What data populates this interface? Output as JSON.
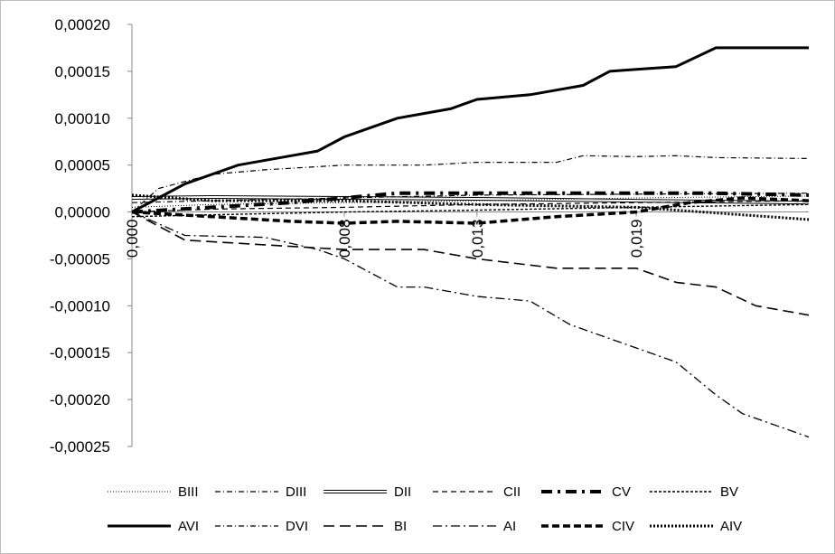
{
  "chart_data": {
    "type": "line",
    "title": "",
    "xlabel": "",
    "ylabel": "",
    "x_tick_labels": [
      "0,000",
      "0,008",
      "0,013",
      "0,019"
    ],
    "x_tick_values": [
      0.0,
      0.008,
      0.013,
      0.019
    ],
    "xlim": [
      0.0,
      0.0255
    ],
    "y_tick_labels": [
      "0,00020",
      "0,00015",
      "0,00010",
      "0,00005",
      "0,00000",
      "-0,00005",
      "-0,00010",
      "-0,00015",
      "-0,00020",
      "-0,00025"
    ],
    "y_tick_values": [
      0.0002,
      0.00015,
      0.0001,
      5e-05,
      0.0,
      -5e-05,
      -0.0001,
      -0.00015,
      -0.0002,
      -0.00025
    ],
    "ylim": [
      -0.00025,
      0.0002
    ],
    "grid": "none",
    "legend_position": "bottom",
    "series": [
      {
        "name": "BIII",
        "style": "dotted-thin",
        "x": [
          0,
          0.003,
          0.008,
          0.013,
          0.019,
          0.0255
        ],
        "y": [
          5e-06,
          8e-06,
          1e-05,
          1.2e-05,
          1.5e-05,
          1.7e-05
        ]
      },
      {
        "name": "DIII",
        "style": "dashdot-thin",
        "x": [
          0,
          0.003,
          0.008,
          0.013,
          0.019,
          0.0255
        ],
        "y": [
          1e-05,
          1.2e-05,
          1.5e-05,
          1.8e-05,
          1.9e-05,
          2e-05
        ]
      },
      {
        "name": "DII",
        "style": "double",
        "x": [
          0,
          0.003,
          0.008,
          0.013,
          0.019,
          0.0255
        ],
        "y": [
          1.5e-05,
          1.6e-05,
          1.5e-05,
          1.4e-05,
          1.2e-05,
          1e-05
        ]
      },
      {
        "name": "CII",
        "style": "dashed-thin",
        "x": [
          0,
          0.003,
          0.008,
          0.013,
          0.019,
          0.0255
        ],
        "y": [
          0.0,
          3e-06,
          5e-06,
          8e-06,
          1e-05,
          1.2e-05
        ]
      },
      {
        "name": "CV",
        "style": "dashdot-thick",
        "x": [
          0,
          0.003,
          0.006,
          0.008,
          0.01,
          0.013,
          0.016,
          0.019,
          0.022,
          0.0255
        ],
        "y": [
          0.0,
          5e-06,
          1e-05,
          1.5e-05,
          2e-05,
          2e-05,
          2e-05,
          2e-05,
          2e-05,
          1.8e-05
        ]
      },
      {
        "name": "BV",
        "style": "dashed-fine",
        "x": [
          0,
          0.003,
          0.008,
          0.013,
          0.019,
          0.0255
        ],
        "y": [
          -5e-06,
          -3e-06,
          0.0,
          2e-06,
          5e-06,
          8e-06
        ]
      },
      {
        "name": "AVI",
        "style": "solid-thick",
        "x": [
          0,
          0.001,
          0.002,
          0.004,
          0.006,
          0.007,
          0.008,
          0.01,
          0.012,
          0.013,
          0.015,
          0.017,
          0.018,
          0.019,
          0.0205,
          0.022,
          0.0255
        ],
        "y": [
          0.0,
          1.5e-05,
          3e-05,
          5e-05,
          6e-05,
          6.5e-05,
          8e-05,
          0.0001,
          0.00011,
          0.00012,
          0.000125,
          0.000135,
          0.00015,
          0.000152,
          0.000155,
          0.000175,
          0.000175
        ]
      },
      {
        "name": "DVI",
        "style": "dashdot-thin",
        "x": [
          0,
          0.001,
          0.003,
          0.005,
          0.008,
          0.011,
          0.013,
          0.016,
          0.017,
          0.019,
          0.0205,
          0.022,
          0.0255
        ],
        "y": [
          0.0,
          2.5e-05,
          4e-05,
          4.5e-05,
          5e-05,
          5e-05,
          5.3e-05,
          5.3e-05,
          6e-05,
          5.9e-05,
          6e-05,
          5.8e-05,
          5.7e-05
        ]
      },
      {
        "name": "BI",
        "style": "dashed-long",
        "x": [
          0,
          0.002,
          0.005,
          0.008,
          0.011,
          0.013,
          0.016,
          0.019,
          0.0205,
          0.022,
          0.0235,
          0.0255
        ],
        "y": [
          0.0,
          -3e-05,
          -3.5e-05,
          -4e-05,
          -4e-05,
          -5e-05,
          -6e-05,
          -6e-05,
          -7.5e-05,
          -8e-05,
          -0.0001,
          -0.00011
        ]
      },
      {
        "name": "AI",
        "style": "dashdot-long",
        "x": [
          0,
          0.002,
          0.005,
          0.007,
          0.008,
          0.009,
          0.01,
          0.011,
          0.013,
          0.015,
          0.0165,
          0.018,
          0.0195,
          0.0205,
          0.022,
          0.023,
          0.0245,
          0.0255
        ],
        "y": [
          0.0,
          -2.5e-05,
          -2.7e-05,
          -4e-05,
          -5e-05,
          -6.5e-05,
          -8e-05,
          -8e-05,
          -9e-05,
          -9.5e-05,
          -0.00012,
          -0.000135,
          -0.00015,
          -0.00016,
          -0.000195,
          -0.000215,
          -0.00023,
          -0.00024
        ]
      },
      {
        "name": "CIV",
        "style": "dashed-thick",
        "x": [
          0,
          0.003,
          0.006,
          0.008,
          0.01,
          0.013,
          0.016,
          0.019,
          0.021,
          0.023,
          0.0255
        ],
        "y": [
          0.0,
          -5e-06,
          -1e-05,
          -1.2e-05,
          -1e-05,
          -1.2e-05,
          -5e-06,
          0.0,
          1e-05,
          1.5e-05,
          1.2e-05
        ]
      },
      {
        "name": "AIV",
        "style": "dotted-thick",
        "x": [
          0,
          0.003,
          0.008,
          0.013,
          0.019,
          0.0255
        ],
        "y": [
          1.8e-05,
          1.2e-05,
          1.2e-05,
          8e-06,
          5e-06,
          -8e-06
        ]
      }
    ]
  }
}
